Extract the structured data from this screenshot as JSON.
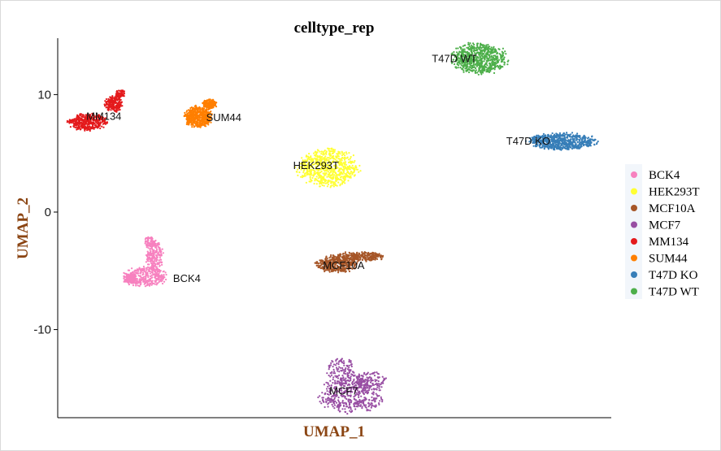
{
  "chart_data": {
    "type": "scatter",
    "title": "celltype_rep",
    "xlabel": "UMAP_1",
    "ylabel": "UMAP_2",
    "ylim": [
      -17.5,
      14.8
    ],
    "y_ticks": [
      10,
      0,
      -10
    ],
    "x_ticks_shown": false,
    "grid": false,
    "legend_position": "right",
    "label_color": "#8B4513",
    "series": [
      {
        "name": "BCK4",
        "color": "#F781BF",
        "center": [
          -8.2,
          -5.0
        ]
      },
      {
        "name": "HEK293T",
        "color": "#FFFF33",
        "center": [
          -1.0,
          4.0
        ]
      },
      {
        "name": "MCF10A",
        "color": "#A65628",
        "center": [
          0.5,
          -4.3
        ]
      },
      {
        "name": "MCF7",
        "color": "#984EA3",
        "center": [
          0.5,
          -15.3
        ]
      },
      {
        "name": "MM134",
        "color": "#E41A1C",
        "center": [
          -12.5,
          8.3
        ]
      },
      {
        "name": "SUM44",
        "color": "#FF7F00",
        "center": [
          -6.0,
          8.4
        ]
      },
      {
        "name": "T47D KO",
        "color": "#377EB8",
        "center": [
          10.2,
          6.0
        ]
      },
      {
        "name": "T47D WT",
        "color": "#4DAF4A",
        "center": [
          6.5,
          13.3
        ]
      }
    ],
    "cluster_labels": [
      {
        "text": "BCK4",
        "x": -8.0,
        "y": -5.6
      },
      {
        "text": "HEK293T",
        "x": -1.0,
        "y": 4.0
      },
      {
        "text": "MCF10A",
        "x": 0.5,
        "y": -4.5
      },
      {
        "text": "MCF7",
        "x": 0.5,
        "y": -15.2
      },
      {
        "text": "MM134",
        "x": -12.5,
        "y": 8.2
      },
      {
        "text": "SUM44",
        "x": -6.0,
        "y": 8.1
      },
      {
        "text": "T47D KO",
        "x": 10.5,
        "y": 6.1
      },
      {
        "text": "T47D WT",
        "x": 6.5,
        "y": 13.1
      }
    ]
  }
}
